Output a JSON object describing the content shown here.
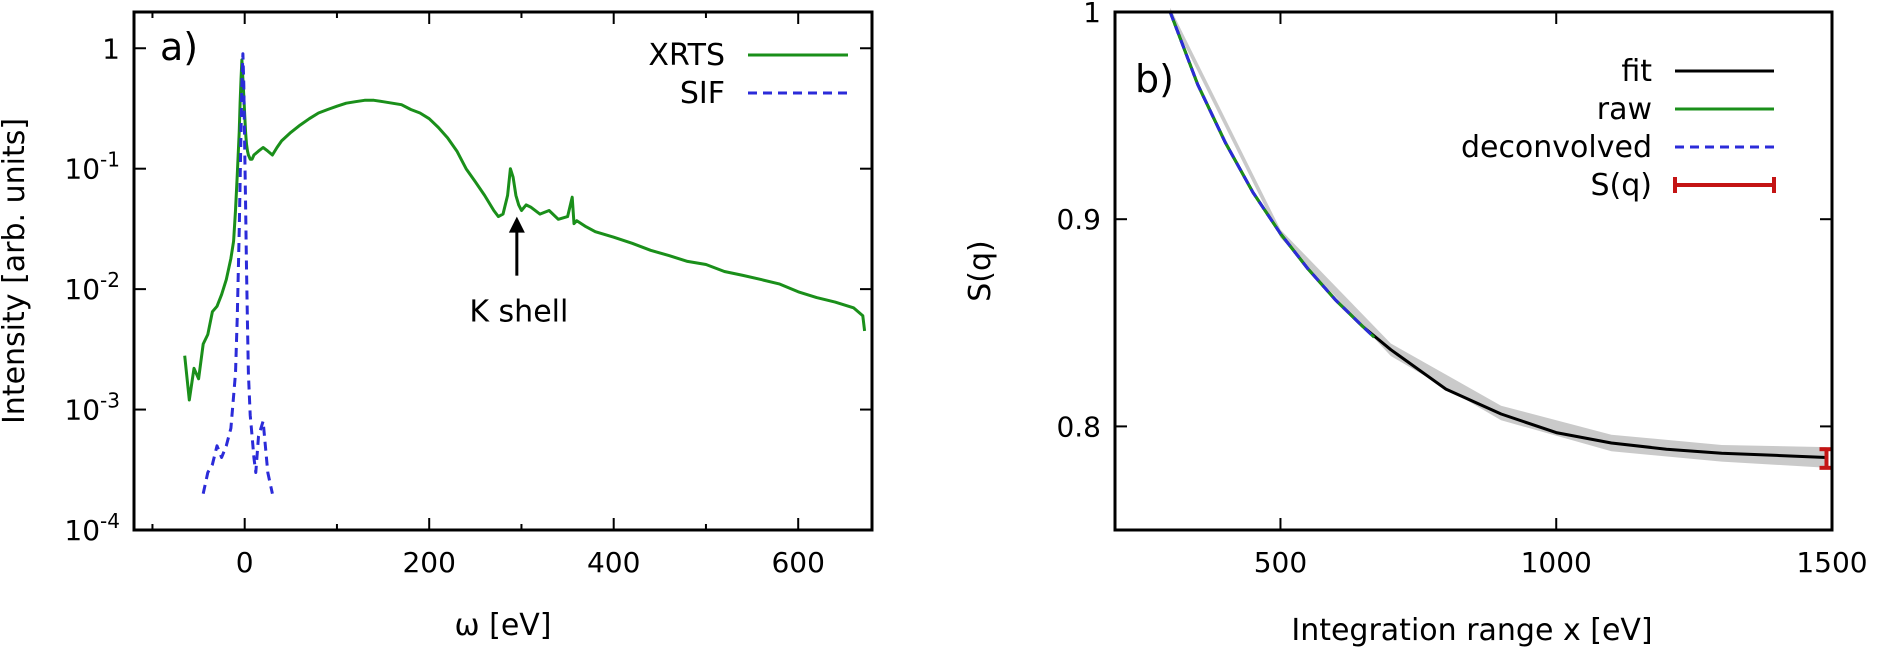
{
  "chart_data": [
    {
      "panel_label": "a)",
      "type": "line",
      "xlabel": "ω [eV]",
      "ylabel": "Intensity [arb. units]",
      "xlim": [
        -120,
        680
      ],
      "ylim": [
        0.0001,
        2
      ],
      "yscale": "log",
      "xticks": [
        0,
        200,
        400,
        600
      ],
      "yticks": [
        {
          "value": 1,
          "base": "1",
          "exp": ""
        },
        {
          "value": 0.1,
          "base": "10",
          "exp": "-1"
        },
        {
          "value": 0.01,
          "base": "10",
          "exp": "-2"
        },
        {
          "value": 0.001,
          "base": "10",
          "exp": "-3"
        },
        {
          "value": 0.0001,
          "base": "10",
          "exp": "-4"
        }
      ],
      "legend_position": "top-right",
      "annotation": {
        "text": "K shell",
        "x": 295,
        "y": 0.0065,
        "arrow_to_y": 0.04
      },
      "series": [
        {
          "name": "XRTS",
          "color": "#1a8f1a",
          "style": "solid",
          "x": [
            -65,
            -60,
            -55,
            -50,
            -45,
            -40,
            -35,
            -30,
            -25,
            -20,
            -15,
            -12,
            -10,
            -8,
            -6,
            -5,
            -4,
            -3,
            -2,
            -1,
            0,
            1,
            2,
            3,
            4,
            5,
            6,
            8,
            10,
            15,
            20,
            25,
            30,
            35,
            40,
            50,
            60,
            70,
            80,
            90,
            100,
            110,
            120,
            130,
            140,
            150,
            160,
            170,
            180,
            190,
            200,
            210,
            220,
            230,
            240,
            250,
            260,
            270,
            275,
            280,
            285,
            288,
            291,
            294,
            297,
            300,
            305,
            310,
            320,
            330,
            340,
            350,
            355,
            357,
            360,
            370,
            380,
            400,
            420,
            440,
            460,
            480,
            500,
            520,
            540,
            560,
            580,
            600,
            620,
            640,
            660,
            670,
            672
          ],
          "y": [
            0.0028,
            0.0012,
            0.0022,
            0.0018,
            0.0035,
            0.0042,
            0.0065,
            0.0072,
            0.009,
            0.012,
            0.018,
            0.025,
            0.045,
            0.09,
            0.2,
            0.35,
            0.55,
            0.8,
            0.55,
            0.4,
            0.28,
            0.2,
            0.16,
            0.14,
            0.13,
            0.125,
            0.12,
            0.12,
            0.13,
            0.14,
            0.15,
            0.14,
            0.13,
            0.15,
            0.17,
            0.2,
            0.23,
            0.26,
            0.29,
            0.31,
            0.33,
            0.35,
            0.36,
            0.37,
            0.37,
            0.36,
            0.35,
            0.34,
            0.31,
            0.29,
            0.26,
            0.22,
            0.18,
            0.14,
            0.1,
            0.078,
            0.06,
            0.045,
            0.04,
            0.042,
            0.06,
            0.1,
            0.085,
            0.06,
            0.05,
            0.045,
            0.05,
            0.048,
            0.042,
            0.045,
            0.038,
            0.04,
            0.058,
            0.035,
            0.037,
            0.033,
            0.03,
            0.027,
            0.024,
            0.021,
            0.019,
            0.017,
            0.016,
            0.014,
            0.013,
            0.012,
            0.011,
            0.0095,
            0.0085,
            0.0078,
            0.007,
            0.006,
            0.0045
          ]
        },
        {
          "name": "SIF",
          "color": "#2b2bd9",
          "style": "dashed",
          "x": [
            -45,
            -40,
            -35,
            -30,
            -25,
            -20,
            -15,
            -10,
            -8,
            -6,
            -4,
            -3,
            -2,
            -1,
            0,
            1,
            2,
            3,
            4,
            6,
            8,
            10,
            12,
            15,
            20,
            25,
            30
          ],
          "y": [
            0.0002,
            0.0003,
            0.00035,
            0.0005,
            0.0004,
            0.0005,
            0.0007,
            0.002,
            0.006,
            0.03,
            0.2,
            0.5,
            0.9,
            0.5,
            0.15,
            0.05,
            0.015,
            0.005,
            0.002,
            0.0009,
            0.0006,
            0.0004,
            0.0003,
            0.0006,
            0.0008,
            0.0003,
            0.0002
          ]
        }
      ]
    },
    {
      "panel_label": "b)",
      "type": "line",
      "xlabel": "Integration range x [eV]",
      "ylabel": "S(q)",
      "xlim": [
        200,
        1500
      ],
      "ylim": [
        0.75,
        1.0
      ],
      "xticks": [
        500,
        1000,
        1500
      ],
      "yticks": [
        0.8,
        0.9,
        1
      ],
      "ytick_labels": [
        "0.8",
        "0.9",
        "1"
      ],
      "legend_position": "top-right",
      "series": [
        {
          "name": "fit",
          "color": "#000000",
          "style": "solid",
          "x": [
            300,
            350,
            400,
            450,
            500,
            550,
            600,
            650,
            700,
            800,
            900,
            1000,
            1100,
            1200,
            1300,
            1400,
            1490
          ],
          "y": [
            1.0,
            0.965,
            0.937,
            0.913,
            0.893,
            0.876,
            0.861,
            0.848,
            0.837,
            0.818,
            0.806,
            0.797,
            0.792,
            0.789,
            0.787,
            0.786,
            0.785
          ]
        },
        {
          "name": "raw",
          "color": "#1a8f1a",
          "style": "solid",
          "x": [
            300,
            350,
            400,
            450,
            500,
            550,
            600,
            650,
            670
          ],
          "y": [
            1.0,
            0.965,
            0.937,
            0.913,
            0.893,
            0.876,
            0.861,
            0.848,
            0.843
          ]
        },
        {
          "name": "deconvolved",
          "color": "#2b2bd9",
          "style": "dashed",
          "x": [
            300,
            350,
            400,
            450,
            500,
            550,
            600,
            650,
            670
          ],
          "y": [
            1.0,
            0.965,
            0.937,
            0.913,
            0.893,
            0.876,
            0.861,
            0.848,
            0.843
          ]
        },
        {
          "name": "S(q)",
          "color": "#c41414",
          "style": "errorbar",
          "x": [
            1490
          ],
          "y": [
            0.7845
          ],
          "yerr": [
            0.0045
          ]
        }
      ],
      "uncertainty_band": {
        "color": "#bdbdbd",
        "x": [
          300,
          500,
          700,
          900,
          1100,
          1300,
          1490
        ],
        "lower": [
          0.998,
          0.891,
          0.834,
          0.803,
          0.788,
          0.783,
          0.78
        ],
        "upper": [
          1.002,
          0.895,
          0.84,
          0.81,
          0.796,
          0.791,
          0.79
        ]
      }
    }
  ]
}
